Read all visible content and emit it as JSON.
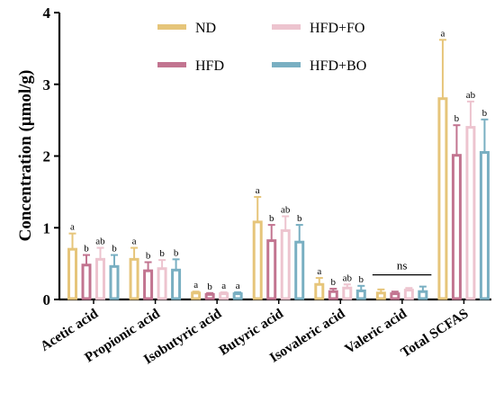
{
  "chart_data": {
    "type": "bar",
    "ylabel": "Concentration (μmol/g)",
    "ylim": [
      0,
      4
    ],
    "yticks": [
      0,
      1,
      2,
      3,
      4
    ],
    "categories": [
      "Acetic acid",
      "Propionic acid",
      "Isobutyric acid",
      "Butyric acid",
      "Isovaleric acid",
      "Valeric acid",
      "Total SCFAS"
    ],
    "legend": {
      "placement": "top-center",
      "columns": 2
    },
    "series": [
      {
        "name": "ND",
        "color": "#E6C57A",
        "values": [
          0.7,
          0.56,
          0.09,
          1.08,
          0.21,
          0.09,
          2.8
        ],
        "errors": [
          0.22,
          0.16,
          0.02,
          0.35,
          0.09,
          0.05,
          0.82
        ],
        "labels": [
          "a",
          "a",
          "a",
          "a",
          "a",
          "",
          "a"
        ]
      },
      {
        "name": "HFD+FO",
        "color": "#EDC4CF",
        "values": [
          0.56,
          0.43,
          0.08,
          0.96,
          0.16,
          0.13,
          2.4
        ],
        "errors": [
          0.16,
          0.12,
          0.02,
          0.2,
          0.05,
          0.03,
          0.36
        ],
        "labels": [
          "ab",
          "b",
          "a",
          "ab",
          "ab",
          "",
          "ab"
        ]
      },
      {
        "name": "HFD",
        "color": "#C27490",
        "values": [
          0.48,
          0.4,
          0.07,
          0.82,
          0.11,
          0.08,
          2.01
        ],
        "errors": [
          0.14,
          0.12,
          0.02,
          0.22,
          0.04,
          0.03,
          0.42
        ],
        "labels": [
          "b",
          "b",
          "b",
          "b",
          "b",
          "",
          "b"
        ]
      },
      {
        "name": "HFD+BO",
        "color": "#79AFC2",
        "values": [
          0.46,
          0.41,
          0.08,
          0.8,
          0.12,
          0.11,
          2.05
        ],
        "errors": [
          0.16,
          0.15,
          0.02,
          0.24,
          0.07,
          0.07,
          0.46
        ],
        "labels": [
          "b",
          "b",
          "a",
          "b",
          "b",
          "",
          "b"
        ]
      }
    ],
    "annotations": [
      {
        "category": "Valeric acid",
        "text": "ns"
      }
    ]
  }
}
